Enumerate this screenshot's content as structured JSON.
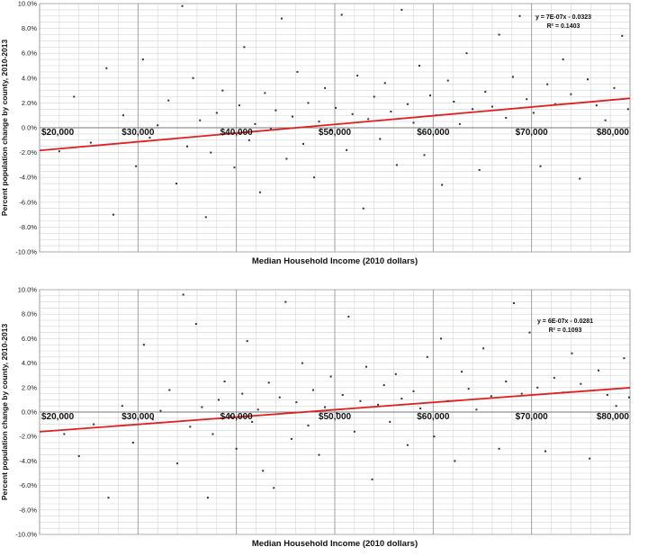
{
  "chart_data": [
    {
      "type": "scatter",
      "title": "",
      "xlabel": "Median Household Income (2010 dollars)",
      "ylabel": "Percent population change by county, 2010-2013",
      "xlim": [
        20000,
        80000
      ],
      "ylim": [
        -0.1,
        0.1
      ],
      "x_tick_labels": [
        "$20,000",
        "$30,000",
        "$40,000",
        "$50,000",
        "$60,000",
        "$70,000",
        "$80,000"
      ],
      "x_tick_values": [
        20000,
        30000,
        40000,
        50000,
        60000,
        70000,
        80000
      ],
      "y_tick_labels": [
        "10.0%",
        "8.0%",
        "6.0%",
        "4.0%",
        "2.0%",
        "0.0%",
        "-2.0%",
        "-4.0%",
        "-6.0%",
        "-8.0%",
        "-10.0%"
      ],
      "y_tick_values": [
        0.1,
        0.08,
        0.06,
        0.04,
        0.02,
        0.0,
        -0.02,
        -0.04,
        -0.06,
        -0.08,
        -0.1
      ],
      "grid": true,
      "marker_color": "#333333",
      "trendline": {
        "slope": 7e-07,
        "intercept": -0.0323,
        "color": "#e02020",
        "equation": "y = 7E-07x - 0.0323",
        "r2": "R² = 0.1403"
      },
      "points": [
        [
          22000,
          -0.019
        ],
        [
          23500,
          0.025
        ],
        [
          25200,
          -0.012
        ],
        [
          26800,
          0.048
        ],
        [
          27500,
          -0.07
        ],
        [
          28500,
          0.01
        ],
        [
          29800,
          -0.031
        ],
        [
          30500,
          0.055
        ],
        [
          31200,
          -0.008
        ],
        [
          32000,
          0.002
        ],
        [
          33100,
          0.022
        ],
        [
          33900,
          -0.045
        ],
        [
          34500,
          0.098
        ],
        [
          35000,
          -0.015
        ],
        [
          35600,
          0.04
        ],
        [
          36300,
          0.006
        ],
        [
          36900,
          -0.072
        ],
        [
          37400,
          -0.02
        ],
        [
          38000,
          0.012
        ],
        [
          38600,
          0.03
        ],
        [
          39200,
          -0.005
        ],
        [
          39800,
          -0.032
        ],
        [
          40300,
          0.018
        ],
        [
          40800,
          0.065
        ],
        [
          41300,
          -0.01
        ],
        [
          41900,
          0.003
        ],
        [
          42400,
          -0.052
        ],
        [
          42900,
          0.028
        ],
        [
          43500,
          -0.001
        ],
        [
          44000,
          0.014
        ],
        [
          44600,
          0.088
        ],
        [
          45100,
          -0.025
        ],
        [
          45700,
          0.009
        ],
        [
          46200,
          0.045
        ],
        [
          46800,
          -0.013
        ],
        [
          47300,
          0.02
        ],
        [
          47900,
          -0.04
        ],
        [
          48400,
          0.005
        ],
        [
          49000,
          0.032
        ],
        [
          49600,
          -0.002
        ],
        [
          50100,
          0.016
        ],
        [
          50700,
          0.091
        ],
        [
          51200,
          -0.018
        ],
        [
          51800,
          0.011
        ],
        [
          52300,
          0.042
        ],
        [
          52900,
          -0.065
        ],
        [
          53400,
          0.007
        ],
        [
          54000,
          0.025
        ],
        [
          54600,
          -0.009
        ],
        [
          55100,
          0.036
        ],
        [
          55700,
          0.013
        ],
        [
          56300,
          -0.03
        ],
        [
          56800,
          0.095
        ],
        [
          57400,
          0.019
        ],
        [
          58000,
          0.004
        ],
        [
          58600,
          0.05
        ],
        [
          59100,
          -0.022
        ],
        [
          59700,
          0.026
        ],
        [
          60300,
          0.01
        ],
        [
          60900,
          -0.046
        ],
        [
          61500,
          0.038
        ],
        [
          62100,
          0.021
        ],
        [
          62700,
          0.003
        ],
        [
          63400,
          0.06
        ],
        [
          64000,
          0.015
        ],
        [
          64700,
          -0.034
        ],
        [
          65300,
          0.029
        ],
        [
          66000,
          0.017
        ],
        [
          66700,
          0.075
        ],
        [
          67400,
          0.008
        ],
        [
          68100,
          0.041
        ],
        [
          68800,
          0.09
        ],
        [
          69500,
          0.023
        ],
        [
          70200,
          0.012
        ],
        [
          70900,
          -0.031
        ],
        [
          71600,
          0.035
        ],
        [
          72400,
          0.019
        ],
        [
          73200,
          0.055
        ],
        [
          74000,
          0.027
        ],
        [
          74900,
          -0.041
        ],
        [
          75700,
          0.039
        ],
        [
          76600,
          0.018
        ],
        [
          77500,
          0.006
        ],
        [
          78400,
          0.032
        ],
        [
          79200,
          0.074
        ],
        [
          79800,
          0.015
        ]
      ]
    },
    {
      "type": "scatter",
      "title": "",
      "xlabel": "Median Household Income (2010 dollars)",
      "ylabel": "Percent population change by county, 2010-2013",
      "xlim": [
        20000,
        80000
      ],
      "ylim": [
        -0.1,
        0.1
      ],
      "x_tick_labels": [
        "$20,000",
        "$30,000",
        "$40,000",
        "$50,000",
        "$60,000",
        "$70,000",
        "$80,000"
      ],
      "x_tick_values": [
        20000,
        30000,
        40000,
        50000,
        60000,
        70000,
        80000
      ],
      "y_tick_labels": [
        "10.0%",
        "8.0%",
        "6.0%",
        "4.0%",
        "2.0%",
        "0.0%",
        "-2.0%",
        "-4.0%",
        "-6.0%",
        "-8.0%",
        "-10.0%"
      ],
      "y_tick_values": [
        0.1,
        0.08,
        0.06,
        0.04,
        0.02,
        0.0,
        -0.02,
        -0.04,
        -0.06,
        -0.08,
        -0.1
      ],
      "grid": true,
      "marker_color": "#333333",
      "trendline": {
        "slope": 6e-07,
        "intercept": -0.0281,
        "color": "#e02020",
        "equation": "y = 6E-07x - 0.0281",
        "r2": "R² = 0.1093"
      },
      "points": [
        [
          22500,
          -0.018
        ],
        [
          24000,
          -0.036
        ],
        [
          25500,
          -0.01
        ],
        [
          27000,
          -0.07
        ],
        [
          28400,
          0.005
        ],
        [
          29500,
          -0.025
        ],
        [
          30600,
          0.055
        ],
        [
          31500,
          -0.006
        ],
        [
          32300,
          0.001
        ],
        [
          33200,
          0.018
        ],
        [
          34000,
          -0.042
        ],
        [
          34600,
          0.096
        ],
        [
          35300,
          -0.012
        ],
        [
          35900,
          0.072
        ],
        [
          36500,
          0.004
        ],
        [
          37100,
          -0.07
        ],
        [
          37600,
          -0.018
        ],
        [
          38200,
          0.01
        ],
        [
          38800,
          0.025
        ],
        [
          39400,
          -0.003
        ],
        [
          40000,
          -0.03
        ],
        [
          40600,
          0.015
        ],
        [
          41100,
          0.058
        ],
        [
          41600,
          -0.008
        ],
        [
          42200,
          0.002
        ],
        [
          42700,
          -0.048
        ],
        [
          43300,
          0.024
        ],
        [
          43800,
          -0.062
        ],
        [
          44400,
          0.012
        ],
        [
          45000,
          0.09
        ],
        [
          45600,
          -0.022
        ],
        [
          46100,
          0.008
        ],
        [
          46700,
          0.04
        ],
        [
          47300,
          -0.011
        ],
        [
          47800,
          0.018
        ],
        [
          48400,
          -0.035
        ],
        [
          49000,
          0.004
        ],
        [
          49600,
          0.029
        ],
        [
          50200,
          -0.001
        ],
        [
          50800,
          0.014
        ],
        [
          51400,
          0.078
        ],
        [
          52000,
          -0.016
        ],
        [
          52600,
          0.009
        ],
        [
          53200,
          0.037
        ],
        [
          53800,
          -0.055
        ],
        [
          54400,
          0.006
        ],
        [
          55000,
          0.022
        ],
        [
          55600,
          -0.008
        ],
        [
          56200,
          0.031
        ],
        [
          56800,
          0.011
        ],
        [
          57400,
          -0.027
        ],
        [
          58000,
          0.017
        ],
        [
          58700,
          0.003
        ],
        [
          59400,
          0.045
        ],
        [
          60100,
          -0.02
        ],
        [
          60800,
          0.06
        ],
        [
          61500,
          0.009
        ],
        [
          62200,
          -0.04
        ],
        [
          62900,
          0.033
        ],
        [
          63600,
          0.019
        ],
        [
          64400,
          0.002
        ],
        [
          65100,
          0.052
        ],
        [
          65900,
          0.013
        ],
        [
          66700,
          -0.03
        ],
        [
          67400,
          0.025
        ],
        [
          68200,
          0.089
        ],
        [
          69000,
          0.015
        ],
        [
          69800,
          0.065
        ],
        [
          70600,
          0.02
        ],
        [
          71400,
          -0.032
        ],
        [
          72300,
          0.028
        ],
        [
          73200,
          0.016
        ],
        [
          74100,
          0.048
        ],
        [
          75000,
          0.023
        ],
        [
          75900,
          -0.038
        ],
        [
          76800,
          0.034
        ],
        [
          77700,
          0.014
        ],
        [
          78600,
          0.005
        ],
        [
          79400,
          0.044
        ],
        [
          79900,
          0.012
        ]
      ]
    }
  ]
}
